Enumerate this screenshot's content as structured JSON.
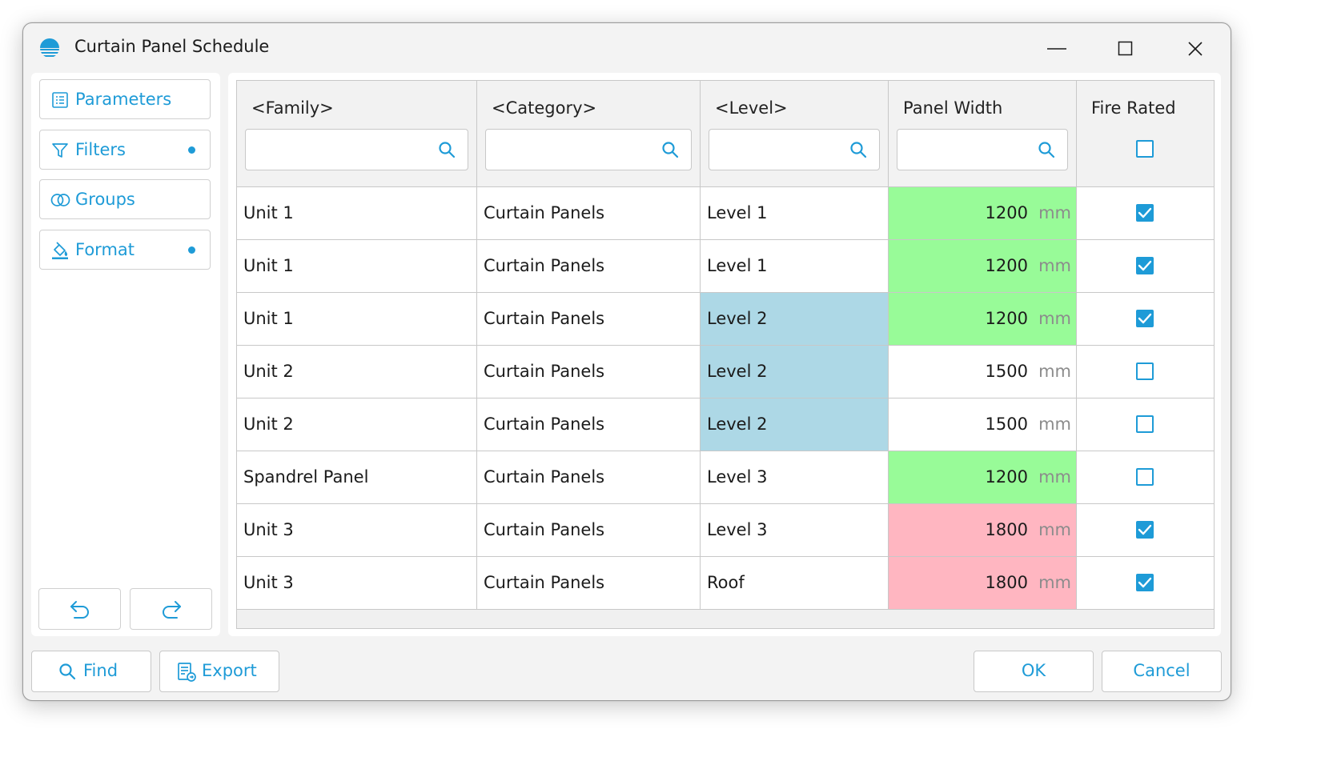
{
  "window": {
    "title": "Curtain Panel Schedule",
    "minimize_icon": "minimize-icon",
    "maximize_icon": "maximize-icon",
    "close_icon": "close-icon"
  },
  "sidebar": {
    "items": [
      {
        "label": "Parameters",
        "icon": "list-icon",
        "has_dot": false
      },
      {
        "label": "Filters",
        "icon": "filter-icon",
        "has_dot": true
      },
      {
        "label": "Groups",
        "icon": "groups-icon",
        "has_dot": false
      },
      {
        "label": "Format",
        "icon": "paint-bucket-icon",
        "has_dot": true
      }
    ],
    "undo_icon": "undo-icon",
    "redo_icon": "redo-icon"
  },
  "table": {
    "columns": [
      {
        "header": "<Family>",
        "filter_type": "search"
      },
      {
        "header": "<Category>",
        "filter_type": "search"
      },
      {
        "header": "<Level>",
        "filter_type": "search"
      },
      {
        "header": "Panel Width",
        "filter_type": "search"
      },
      {
        "header": "Fire Rated",
        "filter_type": "checkbox"
      }
    ],
    "unit": "mm",
    "rows": [
      {
        "family": "Unit 1",
        "category": "Curtain Panels",
        "level": "Level 1",
        "width": "1200",
        "fire_rated": true
      },
      {
        "family": "Unit 1",
        "category": "Curtain Panels",
        "level": "Level 1",
        "width": "1200",
        "fire_rated": true
      },
      {
        "family": "Unit 1",
        "category": "Curtain Panels",
        "level": "Level 2",
        "width": "1200",
        "fire_rated": true
      },
      {
        "family": "Unit 2",
        "category": "Curtain Panels",
        "level": "Level 2",
        "width": "1500",
        "fire_rated": false
      },
      {
        "family": "Unit 2",
        "category": "Curtain Panels",
        "level": "Level 2",
        "width": "1500",
        "fire_rated": false
      },
      {
        "family": "Spandrel Panel",
        "category": "Curtain Panels",
        "level": "Level 3",
        "width": "1200",
        "fire_rated": false
      },
      {
        "family": "Unit 3",
        "category": "Curtain Panels",
        "level": "Level 3",
        "width": "1800",
        "fire_rated": true
      },
      {
        "family": "Unit 3",
        "category": "Curtain Panels",
        "level": "Roof",
        "width": "1800",
        "fire_rated": true
      }
    ],
    "highlight_colors": {
      "level_2": "#add8e6",
      "width_1200": "#98fb98",
      "width_1800": "#ffb6c1"
    }
  },
  "footer": {
    "find_label": "Find",
    "export_label": "Export",
    "ok_label": "OK",
    "cancel_label": "Cancel"
  },
  "colors": {
    "accent": "#1e9bd7"
  }
}
